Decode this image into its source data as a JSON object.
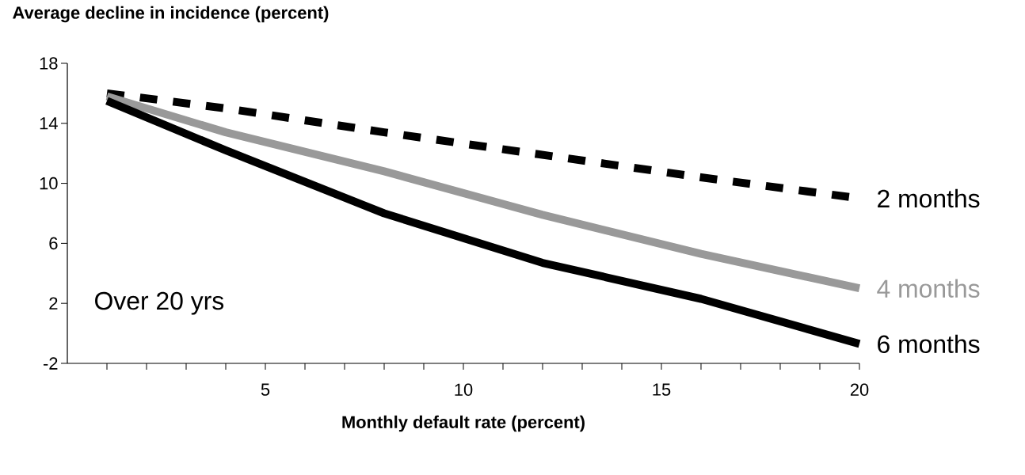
{
  "chart_data": {
    "type": "line",
    "title": "Average decline in incidence (percent)",
    "xlabel": "Monthly default rate (percent)",
    "x": [
      1,
      4,
      8,
      12,
      16,
      20
    ],
    "series": [
      {
        "name": "2 months",
        "color": "#000000",
        "line_style": "dashed",
        "values": [
          16.0,
          15.0,
          13.4,
          11.9,
          10.4,
          9.0
        ]
      },
      {
        "name": "4 months",
        "color": "#999999",
        "line_style": "solid",
        "values": [
          15.8,
          13.4,
          10.8,
          7.9,
          5.3,
          3.0
        ]
      },
      {
        "name": "6 months",
        "color": "#000000",
        "line_style": "solid",
        "values": [
          15.5,
          12.2,
          8.0,
          4.7,
          2.3,
          -0.7
        ]
      }
    ],
    "xlim": [
      0,
      20
    ],
    "ylim": [
      -2,
      18
    ],
    "xticks": [
      {
        "value": 1,
        "label": null
      },
      {
        "value": 2,
        "label": null
      },
      {
        "value": 3,
        "label": null
      },
      {
        "value": 4,
        "label": null
      },
      5,
      {
        "value": 6,
        "label": null
      },
      {
        "value": 7,
        "label": null
      },
      {
        "value": 8,
        "label": null
      },
      {
        "value": 9,
        "label": null
      },
      10,
      {
        "value": 11,
        "label": null
      },
      {
        "value": 12,
        "label": null
      },
      {
        "value": 13,
        "label": null
      },
      {
        "value": 14,
        "label": null
      },
      15,
      {
        "value": 16,
        "label": null
      },
      {
        "value": 17,
        "label": null
      },
      {
        "value": 18,
        "label": null
      },
      {
        "value": 19,
        "label": null
      },
      20
    ],
    "yticks": [
      -2,
      2,
      6,
      10,
      14,
      18
    ],
    "annotations": [
      "Over 20 yrs"
    ],
    "grid": false,
    "legend": false,
    "marker": "none"
  }
}
